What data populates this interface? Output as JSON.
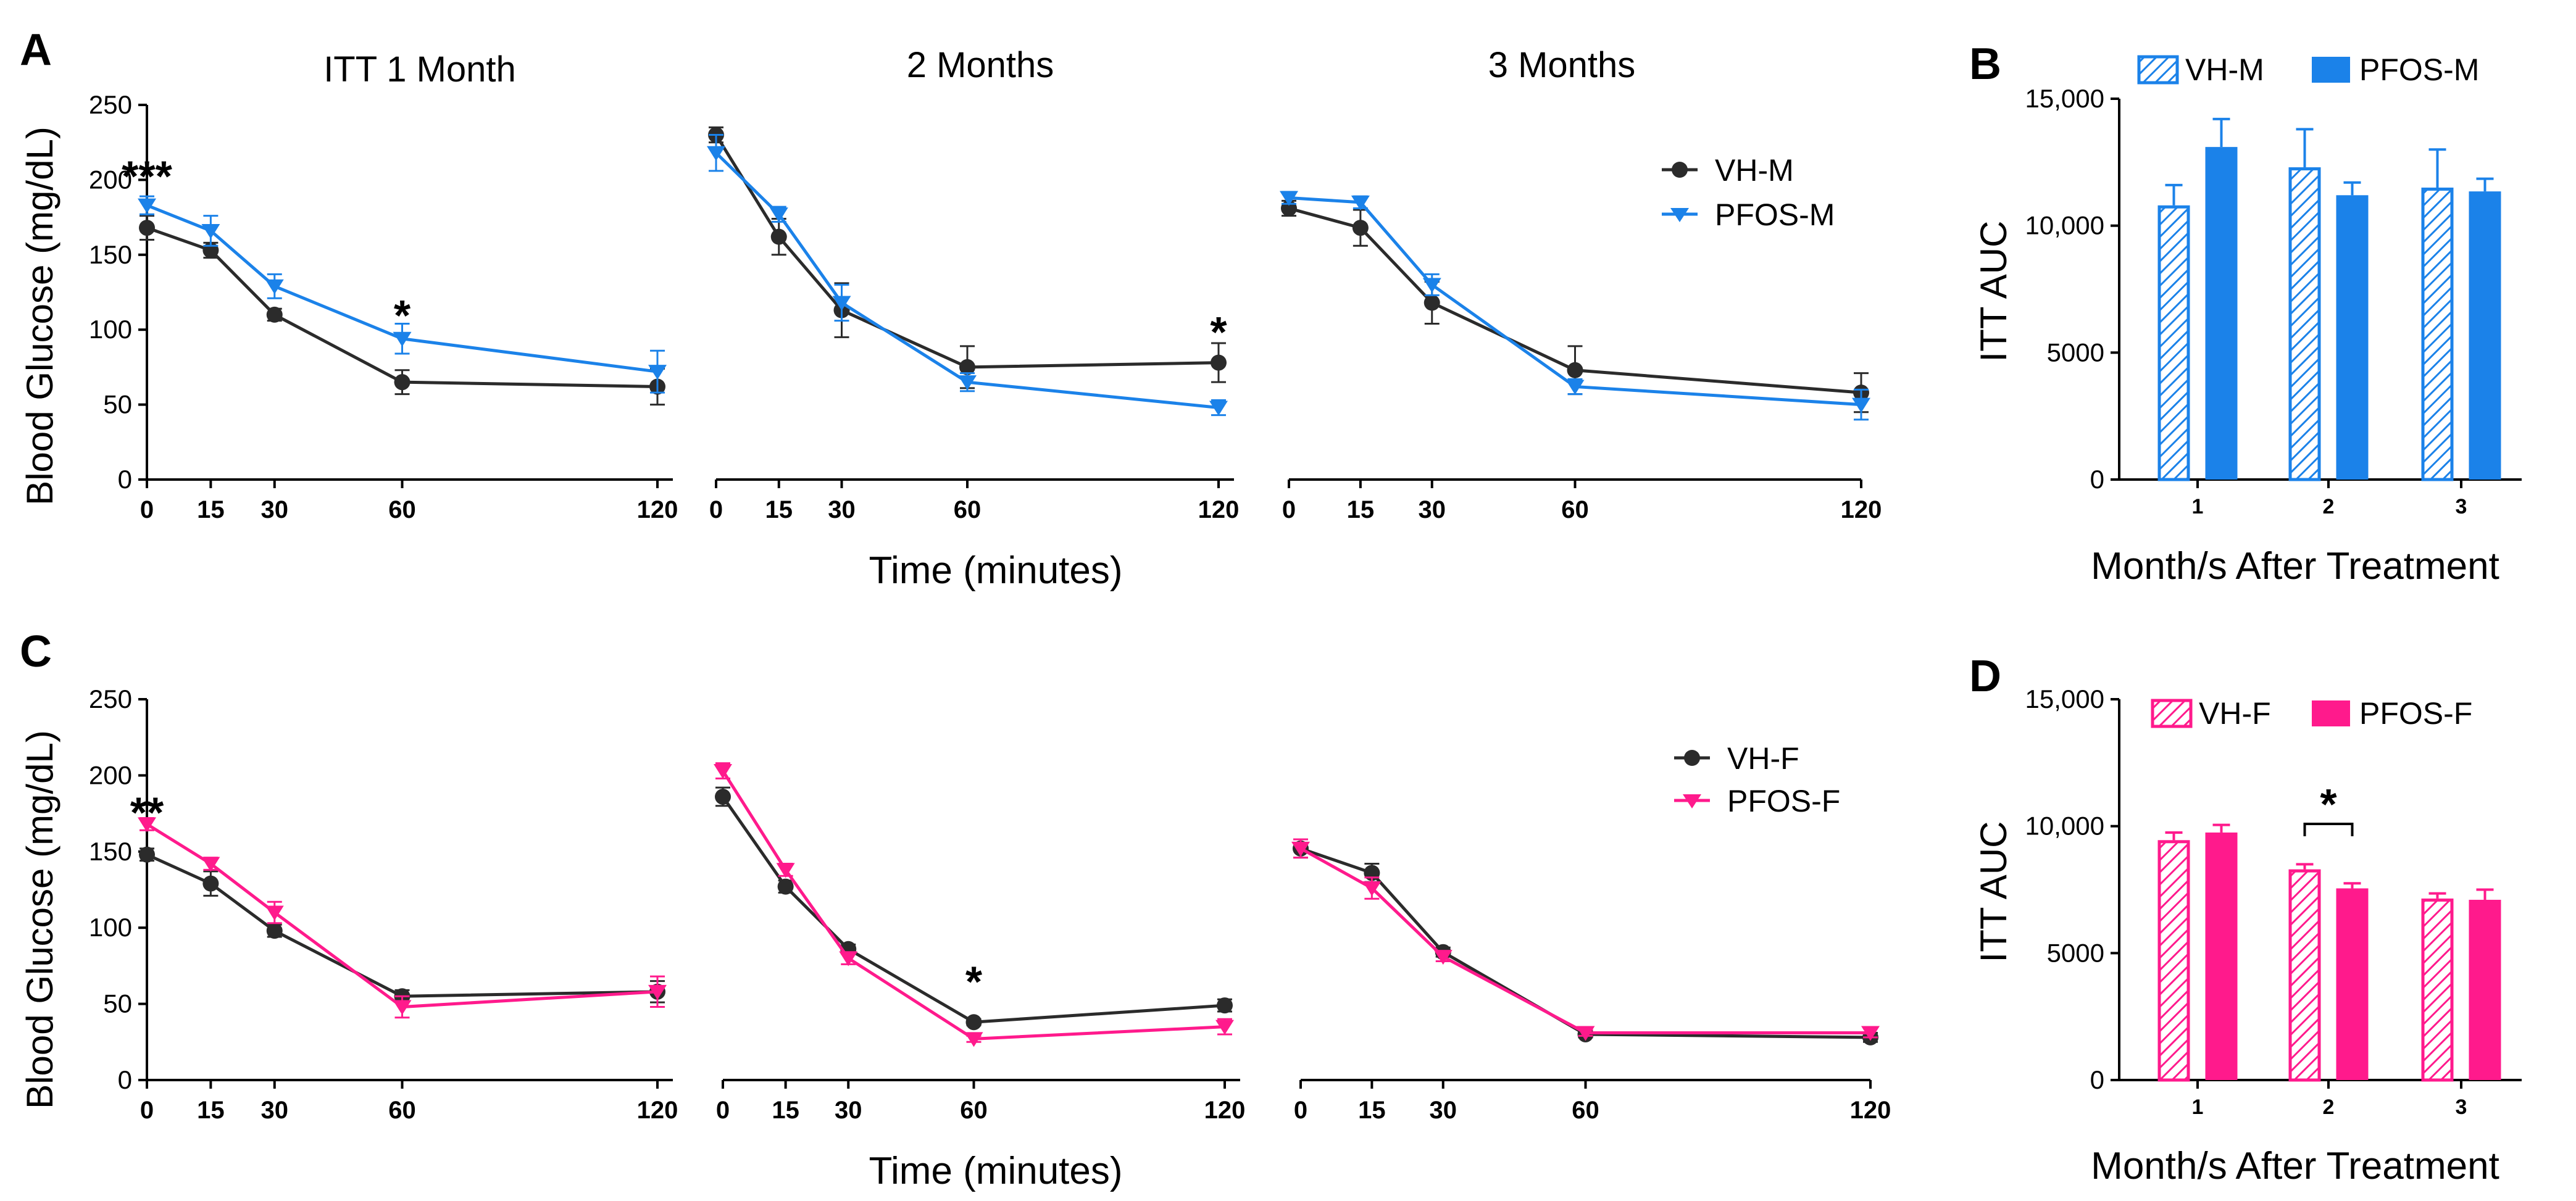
{
  "figure": {
    "colors": {
      "vh": "#2b2b2b",
      "pfos_m": "#1b82e9",
      "pfos_f": "#ff1a8c"
    },
    "time_ticks": [
      "0",
      "15",
      "30",
      "60",
      "120"
    ],
    "glucose_ticks": [
      "0",
      "50",
      "100",
      "150",
      "200",
      "250"
    ],
    "auc_ticks": [
      "0",
      "5000",
      "10,000",
      "15,000"
    ],
    "month_ticks": [
      "1",
      "2",
      "3"
    ]
  },
  "chart_data": [
    {
      "panel": "A",
      "type": "line",
      "titles": [
        "ITT 1 Month",
        "2 Months",
        "3 Months"
      ],
      "ylabel": "Blood Glucose (mg/dL)",
      "xlabel": "Time (minutes)",
      "ylim": [
        0,
        250
      ],
      "x": [
        0,
        15,
        30,
        60,
        120
      ],
      "sub_panels": [
        {
          "series": [
            {
              "name": "VH-M",
              "values": [
                168,
                153,
                110,
                65,
                62
              ],
              "errors": [
                8,
                5,
                4,
                8,
                12
              ]
            },
            {
              "name": "PFOS-M",
              "values": [
                183,
                166,
                129,
                94,
                72
              ],
              "errors": [
                6,
                10,
                8,
                10,
                14
              ]
            }
          ],
          "annotations": [
            {
              "x": 0,
              "y": 205,
              "text": "***"
            },
            {
              "x": 60,
              "y": 112,
              "text": "*"
            }
          ]
        },
        {
          "series": [
            {
              "name": "VH-M",
              "values": [
                230,
                162,
                113,
                75,
                78
              ],
              "errors": [
                5,
                12,
                18,
                14,
                13
              ]
            },
            {
              "name": "PFOS-M",
              "values": [
                218,
                177,
                118,
                65,
                48
              ],
              "errors": [
                12,
                5,
                12,
                6,
                5
              ]
            }
          ],
          "annotations": [
            {
              "x": 120,
              "y": 101,
              "text": "*"
            }
          ]
        },
        {
          "series": [
            {
              "name": "VH-M",
              "values": [
                181,
                168,
                118,
                73,
                58
              ],
              "errors": [
                5,
                12,
                14,
                16,
                13
              ]
            },
            {
              "name": "PFOS-M",
              "values": [
                188,
                185,
                130,
                62,
                50
              ],
              "errors": [
                4,
                4,
                7,
                5,
                10
              ]
            }
          ],
          "annotations": []
        }
      ],
      "legend": [
        "VH-M",
        "PFOS-M"
      ]
    },
    {
      "panel": "B",
      "type": "bar",
      "ylabel": "ITT AUC",
      "xlabel": "Month/s After Treatment",
      "ylim": [
        0,
        15000
      ],
      "categories": [
        "1",
        "2",
        "3"
      ],
      "series": [
        {
          "name": "VH-M",
          "values": [
            10800,
            12300,
            11500
          ],
          "errors": [
            800,
            1500,
            1500
          ]
        },
        {
          "name": "PFOS-M",
          "values": [
            13100,
            11200,
            11350
          ],
          "errors": [
            1100,
            500,
            500
          ]
        }
      ],
      "legend": [
        "VH-M",
        "PFOS-M"
      ]
    },
    {
      "panel": "C",
      "type": "line",
      "ylabel": "Blood Glucose (mg/dL)",
      "xlabel": "Time (minutes)",
      "ylim": [
        0,
        250
      ],
      "x": [
        0,
        15,
        30,
        60,
        120
      ],
      "sub_panels": [
        {
          "series": [
            {
              "name": "VH-F",
              "values": [
                148,
                129,
                98,
                55,
                58
              ],
              "errors": [
                4,
                8,
                4,
                4,
                7
              ]
            },
            {
              "name": "PFOS-F",
              "values": [
                168,
                142,
                110,
                48,
                58
              ],
              "errors": [
                4,
                4,
                7,
                7,
                10
              ]
            }
          ],
          "annotations": [
            {
              "x": 0,
              "y": 178,
              "text": "**"
            }
          ]
        },
        {
          "series": [
            {
              "name": "VH-F",
              "values": [
                186,
                127,
                86,
                38,
                49
              ],
              "errors": [
                6,
                4,
                3,
                2,
                4
              ]
            },
            {
              "name": "PFOS-F",
              "values": [
                203,
                138,
                80,
                27,
                35
              ],
              "errors": [
                5,
                4,
                4,
                2,
                5
              ]
            }
          ],
          "annotations": [
            {
              "x": 60,
              "y": 67,
              "text": "*"
            }
          ]
        },
        {
          "series": [
            {
              "name": "VH-F",
              "values": [
                152,
                136,
                84,
                30,
                28
              ],
              "errors": [
                6,
                6,
                3,
                2,
                3
              ]
            },
            {
              "name": "PFOS-F",
              "values": [
                152,
                126,
                81,
                31,
                31
              ],
              "errors": [
                6,
                7,
                3,
                2,
                3
              ]
            }
          ],
          "annotations": []
        }
      ],
      "legend": [
        "VH-F",
        "PFOS-F"
      ]
    },
    {
      "panel": "D",
      "type": "bar",
      "ylabel": "ITT AUC",
      "xlabel": "Month/s After Treatment",
      "ylim": [
        0,
        15000
      ],
      "categories": [
        "1",
        "2",
        "3"
      ],
      "series": [
        {
          "name": "VH-F",
          "values": [
            9450,
            8300,
            7150
          ],
          "errors": [
            300,
            200,
            200
          ]
        },
        {
          "name": "PFOS-F",
          "values": [
            9750,
            7550,
            7100
          ],
          "errors": [
            300,
            200,
            400
          ]
        }
      ],
      "significance": {
        "category": "2",
        "text": "*"
      },
      "legend": [
        "VH-F",
        "PFOS-F"
      ]
    }
  ]
}
